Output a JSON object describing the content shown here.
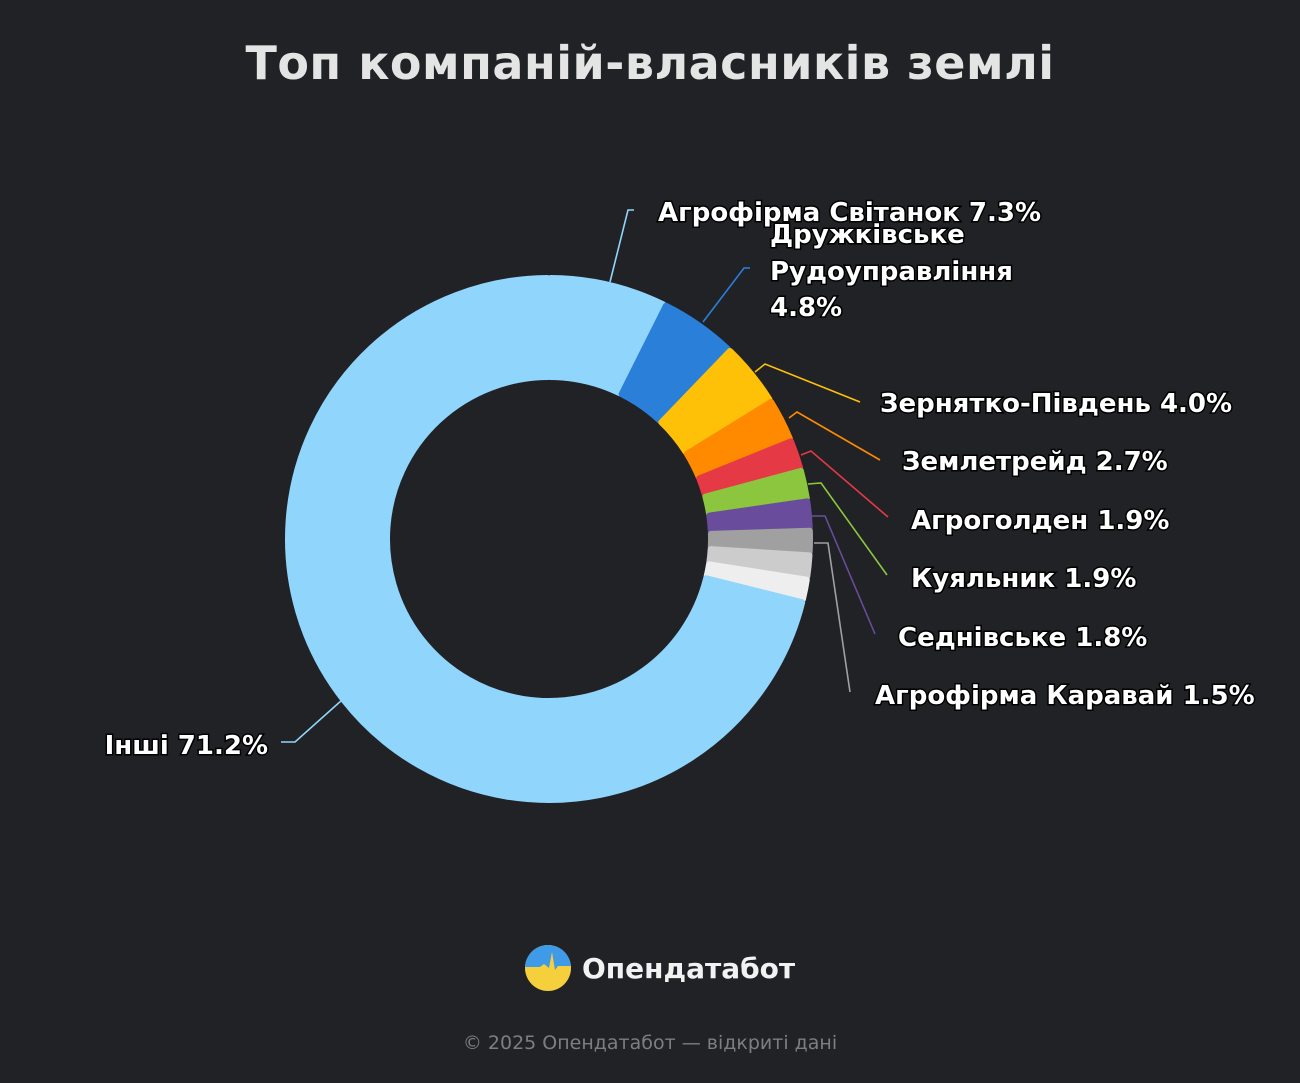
{
  "chart_data": {
    "type": "pie",
    "variant": "donut",
    "title": "Топ компаній-власників землі",
    "unit": "%",
    "slices": [
      {
        "name": "Агрофірма Світанок",
        "value": 7.3,
        "label": "Агрофірма Світанок 7.3%",
        "color": "#90d5fb"
      },
      {
        "name": "Дружківське Рудоуправління",
        "value": 4.8,
        "label_lines": [
          "Дружківське",
          "Рудоуправління",
          "4.8%"
        ],
        "color": "#2a7fd8"
      },
      {
        "name": "Зернятко-Південь",
        "value": 4.0,
        "label": "Зернятко-Південь 4.0%",
        "color": "#ffc107"
      },
      {
        "name": "Землетрейд",
        "value": 2.7,
        "label": "Землетрейд 2.7%",
        "color": "#ff8a00"
      },
      {
        "name": "Агроголден",
        "value": 1.9,
        "label": "Агроголден 1.9%",
        "color": "#e63946"
      },
      {
        "name": "Куяльник",
        "value": 1.9,
        "label": "Куяльник 1.9%",
        "color": "#8cc63f"
      },
      {
        "name": "Седнівське",
        "value": 1.8,
        "label": "Седнівське 1.8%",
        "color": "#6a4c9c"
      },
      {
        "name": "Агрофірма Каравай",
        "value": 1.5,
        "label": "Агрофірма Каравай 1.5%",
        "color": "#a0a0a0"
      },
      {
        "name": "",
        "value": 1.5,
        "color": "#cccccc"
      },
      {
        "name": "",
        "value": 1.4,
        "color": "#eeeeee"
      },
      {
        "name": "Інші",
        "value": 71.2,
        "label": "Інші 71.2%",
        "color": "#90d5fb"
      }
    ]
  },
  "brand": {
    "name": "Опендатабот"
  },
  "footer": {
    "text": "© 2025 Опендатабот — відкриті дані"
  }
}
